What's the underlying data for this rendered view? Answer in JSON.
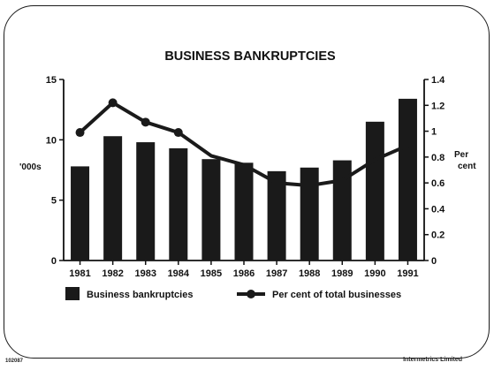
{
  "chart_data": {
    "type": "bar",
    "title": "BUSINESS BANKRUPTCIES",
    "categories": [
      "1981",
      "1982",
      "1983",
      "1984",
      "1985",
      "1986",
      "1987",
      "1988",
      "1989",
      "1990",
      "1991"
    ],
    "series": [
      {
        "name": "Business bankruptcies",
        "type": "bar",
        "axis": "left",
        "values": [
          7.8,
          10.3,
          9.8,
          9.3,
          8.4,
          8.1,
          7.4,
          7.7,
          8.3,
          11.5,
          13.4
        ],
        "color": "#1a1a1a"
      },
      {
        "name": "Per cent of total businesses",
        "type": "line",
        "axis": "right",
        "values": [
          0.99,
          1.22,
          1.07,
          0.99,
          0.81,
          0.74,
          0.6,
          0.58,
          0.62,
          0.78,
          0.89
        ],
        "color": "#1a1a1a"
      }
    ],
    "ylabel_left": "'000s",
    "ylabel_right_line1": "Per",
    "ylabel_right_line2": "cent",
    "ylim_left": [
      0,
      15
    ],
    "ylim_right": [
      0,
      1.4
    ],
    "yticks_left": [
      "0",
      "5",
      "10",
      "15"
    ],
    "yticks_right": [
      "0",
      "0.2",
      "0.4",
      "0.6",
      "0.8",
      "1",
      "1.2",
      "1.4"
    ],
    "legend_position": "bottom",
    "grid": false
  },
  "footer": {
    "left_code": "102087",
    "right_credit": "Intermetrics Limited"
  }
}
